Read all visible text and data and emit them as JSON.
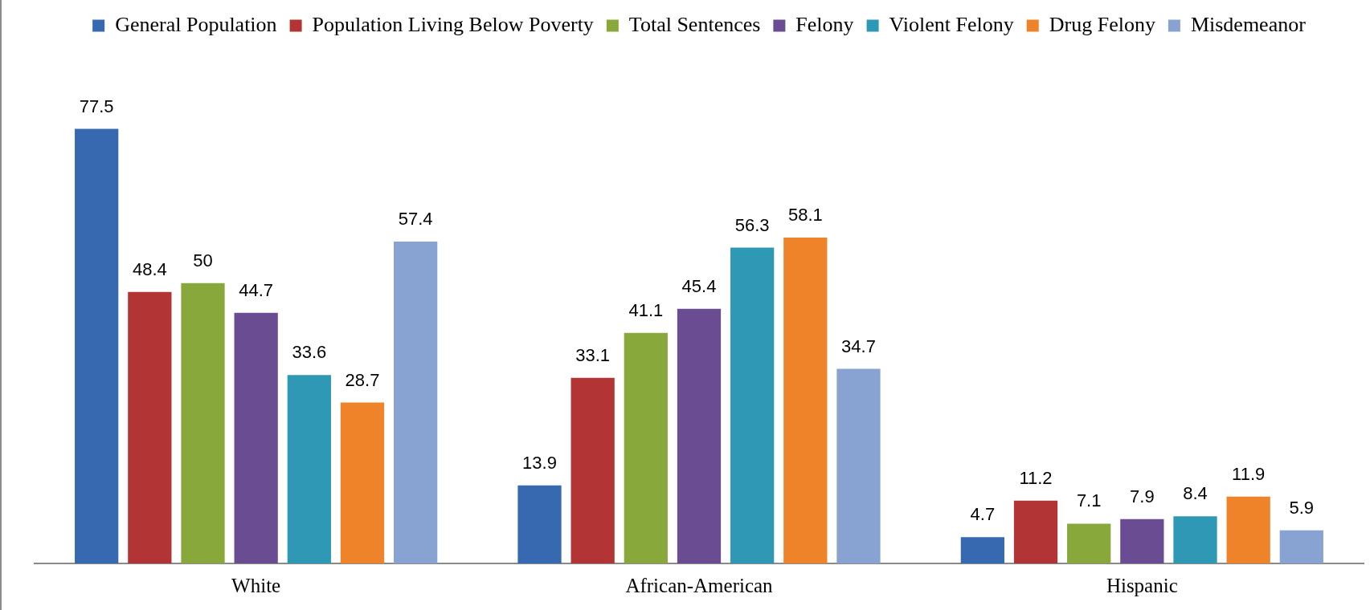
{
  "chart_data": {
    "type": "bar",
    "categories": [
      "White",
      "African-American",
      "Hispanic"
    ],
    "series": [
      {
        "name": "General Population",
        "color": "#3769b1",
        "values": [
          77.5,
          13.9,
          4.7
        ]
      },
      {
        "name": "Population Living Below Poverty",
        "color": "#b33434",
        "values": [
          48.4,
          33.1,
          11.2
        ]
      },
      {
        "name": "Total Sentences",
        "color": "#88a83c",
        "values": [
          50,
          41.1,
          7.1
        ]
      },
      {
        "name": "Felony",
        "color": "#6a4c93",
        "values": [
          44.7,
          45.4,
          7.9
        ]
      },
      {
        "name": "Violent Felony",
        "color": "#2f98b5",
        "values": [
          33.6,
          56.3,
          8.4
        ]
      },
      {
        "name": "Drug Felony",
        "color": "#ee8329",
        "values": [
          28.7,
          58.1,
          11.9
        ]
      },
      {
        "name": "Misdemeanor",
        "color": "#88a3d2",
        "values": [
          57.4,
          34.7,
          5.9
        ]
      }
    ],
    "data_labels": true,
    "legend": "top",
    "grid": false
  }
}
